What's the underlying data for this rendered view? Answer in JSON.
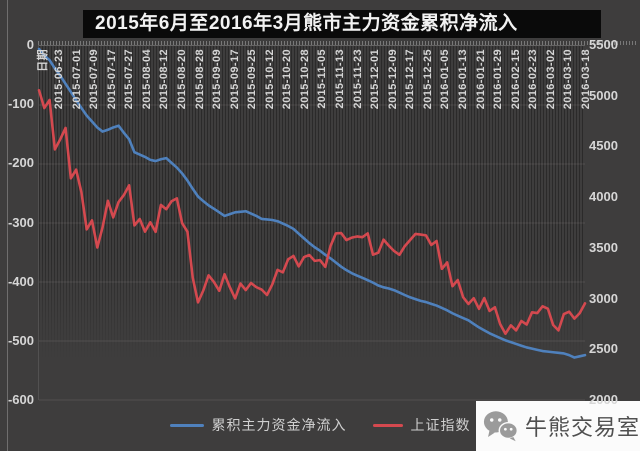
{
  "title": "2015年6月至2016年3月熊市主力资金累积净流入",
  "axes": {
    "x_title": "日期",
    "left_axis_labels": [
      "0",
      "-100",
      "-200",
      "-300",
      "-400",
      "-500",
      "-600"
    ],
    "right_axis_labels": [
      "5500",
      "5000",
      "4500",
      "4000",
      "3500",
      "3000",
      "2500",
      "2000"
    ]
  },
  "legend": {
    "items": [
      {
        "label": "累积主力资金净流入",
        "color": "#4f81bd"
      },
      {
        "label": "上证指数",
        "color": "#d4494f"
      }
    ]
  },
  "watermark": {
    "text": "牛熊交易室",
    "icon": "wechat-icon"
  },
  "colors": {
    "background": "#3e3d3d",
    "title_bar": "#0a0a0a",
    "axis_text": "#d6d6d6",
    "blue_series": "#4f81bd",
    "red_series": "#d4494f",
    "watermark_bg": "#fbfbfb"
  },
  "chart_data": {
    "type": "line",
    "title": "2015年6月至2016年3月熊市主力资金累积净流入",
    "xlabel": "日期",
    "x_tick_labels": [
      "2015-06-23",
      "2015-07-01",
      "2015-07-09",
      "2015-07-17",
      "2015-07-27",
      "2015-08-04",
      "2015-08-12",
      "2015-08-20",
      "2015-08-28",
      "2015-09-09",
      "2015-09-17",
      "2015-09-25",
      "2015-10-12",
      "2015-10-20",
      "2015-10-28",
      "2015-11-05",
      "2015-11-13",
      "2015-11-23",
      "2015-12-01",
      "2015-12-09",
      "2015-12-17",
      "2015-12-25",
      "2016-01-05",
      "2016-01-13",
      "2016-01-21",
      "2016-01-29",
      "2016-02-15",
      "2016-02-23",
      "2016-03-02",
      "2016-03-10",
      "2016-03-18"
    ],
    "left_ylim": [
      -600,
      0
    ],
    "right_ylim": [
      2000,
      5500
    ],
    "grid": true,
    "legend_position": "bottom",
    "series": [
      {
        "name": "累积主力资金净流入",
        "axis": "left",
        "color": "#4f81bd",
        "ylim": [
          -600,
          0
        ],
        "values": [
          -5,
          -16,
          -24,
          -38,
          -50,
          -64,
          -78,
          -92,
          -105,
          -118,
          -128,
          -138,
          -145,
          -142,
          -138,
          -135,
          -147,
          -158,
          -180,
          -184,
          -188,
          -193,
          -195,
          -192,
          -190,
          -198,
          -206,
          -216,
          -228,
          -242,
          -255,
          -263,
          -270,
          -276,
          -282,
          -288,
          -285,
          -282,
          -281,
          -280,
          -284,
          -288,
          -293,
          -294,
          -295,
          -297,
          -301,
          -305,
          -310,
          -318,
          -326,
          -334,
          -341,
          -347,
          -354,
          -360,
          -367,
          -374,
          -380,
          -385,
          -389,
          -393,
          -397,
          -401,
          -406,
          -409,
          -411,
          -414,
          -418,
          -422,
          -426,
          -429,
          -432,
          -434,
          -437,
          -440,
          -444,
          -448,
          -453,
          -457,
          -461,
          -465,
          -471,
          -477,
          -482,
          -487,
          -491,
          -495,
          -499,
          -502,
          -505,
          -508,
          -511,
          -513,
          -515,
          -517,
          -518,
          -519,
          -520,
          -521,
          -524,
          -528,
          -526,
          -524
        ]
      },
      {
        "name": "上证指数",
        "axis": "right",
        "color": "#d4494f",
        "ylim": [
          2000,
          5500
        ],
        "values": [
          5062,
          4887,
          4967,
          4478,
          4576,
          4690,
          4192,
          4277,
          4054,
          3687,
          3776,
          3507,
          3709,
          3970,
          3805,
          3957,
          4026,
          4123,
          3726,
          3789,
          3664,
          3757,
          3662,
          3928,
          3886,
          3965,
          3994,
          3748,
          3664,
          3210,
          2965,
          3083,
          3232,
          3166,
          3080,
          3243,
          3115,
          3005,
          3152,
          3086,
          3156,
          3116,
          3092,
          3038,
          3143,
          3287,
          3262,
          3391,
          3425,
          3321,
          3413,
          3434,
          3375,
          3383,
          3316,
          3523,
          3647,
          3650,
          3581,
          3605,
          3617,
          3610,
          3647,
          3436,
          3456,
          3585,
          3525,
          3472,
          3435,
          3520,
          3580,
          3642,
          3636,
          3628,
          3533,
          3572,
          3296,
          3361,
          3125,
          3186,
          3016,
          2949,
          3007,
          2901,
          3008,
          2880,
          2917,
          2750,
          2655,
          2738,
          2688,
          2781,
          2746,
          2867,
          2860,
          2927,
          2903,
          2741,
          2688,
          2850,
          2874,
          2805,
          2859,
          2955
        ]
      }
    ]
  }
}
